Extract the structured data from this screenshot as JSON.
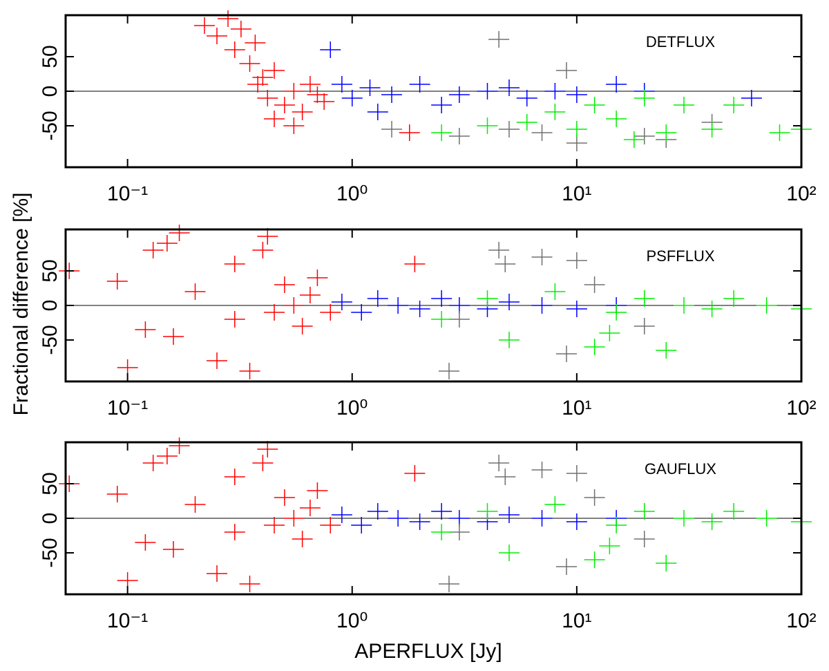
{
  "chart_data": [
    {
      "type": "scatter",
      "annotation": "DETFLUX",
      "xscale": "log",
      "xlim": [
        0.053,
        100
      ],
      "ylim": [
        -110,
        110
      ],
      "xticks": [
        {
          "value": 0.1,
          "label": "10⁻¹"
        },
        {
          "value": 1,
          "label": "10⁰"
        },
        {
          "value": 10,
          "label": "10¹"
        },
        {
          "value": 100,
          "label": "10²"
        }
      ],
      "yticks": [
        -50,
        0,
        50
      ],
      "reference_line": 0,
      "series": [
        {
          "color": "#ff0000",
          "x": [
            0.22,
            0.25,
            0.28,
            0.3,
            0.32,
            0.35,
            0.37,
            0.4,
            0.42,
            0.45,
            0.5,
            0.55,
            0.6,
            0.65,
            0.7,
            0.75,
            0.45,
            0.55,
            1.8,
            0.38
          ],
          "values": [
            95,
            80,
            105,
            60,
            90,
            40,
            70,
            20,
            -10,
            30,
            -20,
            0,
            -30,
            10,
            -5,
            -15,
            -40,
            -50,
            -60,
            10
          ]
        },
        {
          "color": "#0000ff",
          "x": [
            0.8,
            0.9,
            1.0,
            1.2,
            1.5,
            2,
            2.5,
            3,
            4,
            5,
            6,
            8,
            10,
            15,
            20,
            60,
            1.3
          ],
          "values": [
            60,
            10,
            -10,
            5,
            -5,
            10,
            -20,
            -5,
            0,
            5,
            -10,
            0,
            -5,
            10,
            0,
            -10,
            -30
          ]
        },
        {
          "color": "#707070",
          "x": [
            4.5,
            9,
            1.5,
            3,
            5,
            10,
            20,
            25,
            40,
            7
          ],
          "values": [
            75,
            30,
            -55,
            -65,
            -55,
            -75,
            -65,
            -70,
            -45,
            -60
          ]
        },
        {
          "color": "#00ee00",
          "x": [
            2.5,
            4,
            6,
            8,
            10,
            12,
            15,
            20,
            25,
            30,
            40,
            50,
            80,
            100,
            18
          ],
          "values": [
            -60,
            -50,
            -45,
            -30,
            -55,
            -20,
            -40,
            -10,
            -60,
            -20,
            -55,
            -20,
            -60,
            -55,
            -70
          ]
        }
      ]
    },
    {
      "type": "scatter",
      "annotation": "PSFFLUX",
      "ylabel": "Fractional difference [%]",
      "xscale": "log",
      "xlim": [
        0.053,
        100
      ],
      "ylim": [
        -110,
        110
      ],
      "xticks": [
        {
          "value": 0.1,
          "label": "10⁻¹"
        },
        {
          "value": 1,
          "label": "10⁰"
        },
        {
          "value": 10,
          "label": "10¹"
        },
        {
          "value": 100,
          "label": "10²"
        }
      ],
      "yticks": [
        -50,
        0,
        50
      ],
      "reference_line": 0,
      "series": [
        {
          "color": "#ff0000",
          "x": [
            0.055,
            0.09,
            0.1,
            0.12,
            0.13,
            0.15,
            0.17,
            0.16,
            0.2,
            0.25,
            0.3,
            0.35,
            0.4,
            0.42,
            0.45,
            0.5,
            0.55,
            0.6,
            0.65,
            0.7,
            0.8,
            1.9,
            0.3
          ],
          "values": [
            50,
            35,
            -90,
            -35,
            80,
            90,
            105,
            -45,
            20,
            -80,
            60,
            -95,
            80,
            100,
            -10,
            30,
            0,
            -30,
            15,
            40,
            -10,
            60,
            -20
          ]
        },
        {
          "color": "#0000ff",
          "x": [
            0.9,
            1.1,
            1.3,
            1.6,
            2,
            2.5,
            3,
            4,
            5,
            7,
            10,
            15
          ],
          "values": [
            5,
            -10,
            10,
            0,
            -5,
            10,
            0,
            -5,
            5,
            0,
            -5,
            0
          ]
        },
        {
          "color": "#707070",
          "x": [
            2.7,
            4.5,
            4.8,
            7,
            9,
            10,
            12,
            3,
            20
          ],
          "values": [
            -95,
            80,
            60,
            70,
            -70,
            65,
            30,
            -20,
            -30
          ]
        },
        {
          "color": "#00ee00",
          "x": [
            2.5,
            4,
            5,
            8,
            12,
            15,
            20,
            25,
            30,
            40,
            50,
            70,
            100,
            14
          ],
          "values": [
            -20,
            10,
            -50,
            20,
            -60,
            -10,
            10,
            -65,
            0,
            -5,
            10,
            0,
            -5,
            -40
          ]
        }
      ]
    },
    {
      "type": "scatter",
      "annotation": "GAUFLUX",
      "xlabel": "APERFLUX [Jy]",
      "xscale": "log",
      "xlim": [
        0.053,
        100
      ],
      "ylim": [
        -110,
        110
      ],
      "xticks": [
        {
          "value": 0.1,
          "label": "10⁻¹"
        },
        {
          "value": 1,
          "label": "10⁰"
        },
        {
          "value": 10,
          "label": "10¹"
        },
        {
          "value": 100,
          "label": "10²"
        }
      ],
      "yticks": [
        -50,
        0,
        50
      ],
      "reference_line": 0,
      "series": [
        {
          "color": "#ff0000",
          "x": [
            0.055,
            0.09,
            0.1,
            0.12,
            0.13,
            0.15,
            0.17,
            0.16,
            0.2,
            0.25,
            0.3,
            0.35,
            0.4,
            0.42,
            0.45,
            0.5,
            0.55,
            0.6,
            0.65,
            0.7,
            0.8,
            1.9,
            0.3
          ],
          "values": [
            50,
            35,
            -90,
            -35,
            80,
            90,
            105,
            -45,
            20,
            -80,
            60,
            -95,
            80,
            100,
            -10,
            30,
            0,
            -30,
            15,
            40,
            -10,
            65,
            -20
          ]
        },
        {
          "color": "#0000ff",
          "x": [
            0.9,
            1.1,
            1.3,
            1.6,
            2,
            2.5,
            3,
            4,
            5,
            7,
            10,
            15
          ],
          "values": [
            5,
            -10,
            10,
            0,
            -5,
            10,
            0,
            -5,
            5,
            0,
            -5,
            0
          ]
        },
        {
          "color": "#707070",
          "x": [
            2.7,
            4.5,
            4.8,
            7,
            9,
            10,
            12,
            3,
            20
          ],
          "values": [
            -95,
            80,
            60,
            70,
            -70,
            65,
            30,
            -20,
            -30
          ]
        },
        {
          "color": "#00ee00",
          "x": [
            2.5,
            4,
            5,
            8,
            12,
            15,
            20,
            25,
            30,
            40,
            50,
            70,
            100,
            14
          ],
          "values": [
            -20,
            10,
            -50,
            20,
            -60,
            -10,
            10,
            -65,
            0,
            -5,
            10,
            0,
            -5,
            -40
          ]
        }
      ]
    }
  ]
}
